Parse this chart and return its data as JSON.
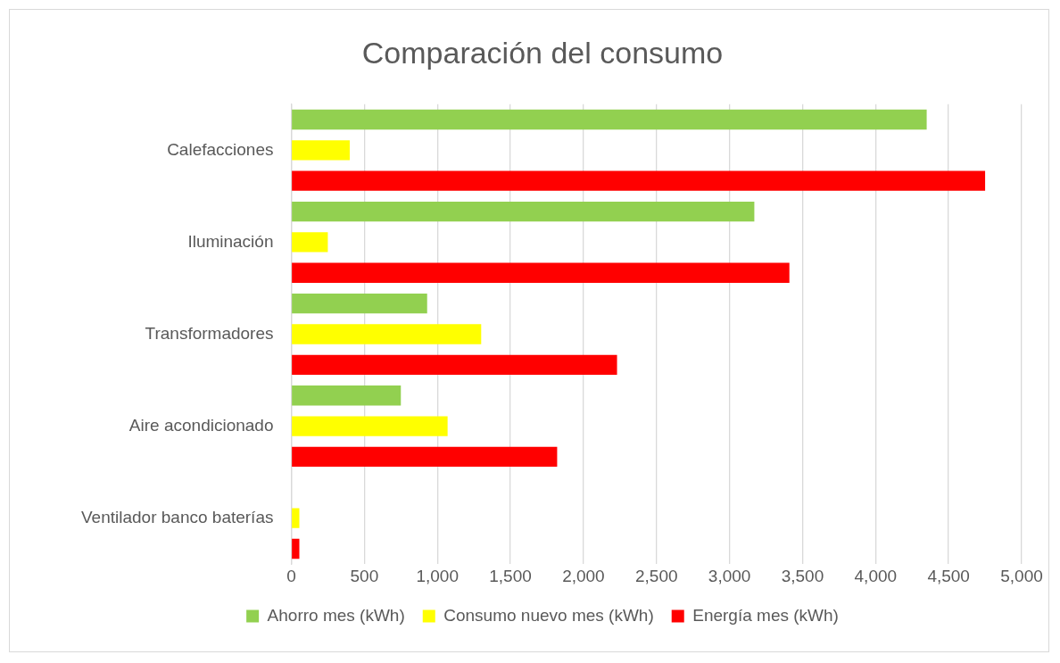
{
  "chart_data": {
    "type": "bar",
    "orientation": "horizontal",
    "title": "Comparación del consumo",
    "categories": [
      "Calefacciones",
      "Iluminación",
      "Transformadores",
      "Aire acondicionado",
      "Ventilador banco baterías"
    ],
    "series": [
      {
        "name": "Ahorro mes (kWh)",
        "color": "#92d050",
        "values": [
          4350,
          3170,
          930,
          750,
          0
        ]
      },
      {
        "name": "Consumo nuevo mes (kWh)",
        "color": "#ffff00",
        "values": [
          400,
          250,
          1300,
          1070,
          55
        ]
      },
      {
        "name": "Energía mes (kWh)",
        "color": "#ff0000",
        "values": [
          4750,
          3410,
          2230,
          1820,
          55
        ]
      }
    ],
    "xlim": [
      0,
      5000
    ],
    "xticks": [
      {
        "value": 0,
        "label": "0"
      },
      {
        "value": 500,
        "label": "500"
      },
      {
        "value": 1000,
        "label": "1,000"
      },
      {
        "value": 1500,
        "label": "1,500"
      },
      {
        "value": 2000,
        "label": "2,000"
      },
      {
        "value": 2500,
        "label": "2,500"
      },
      {
        "value": 3000,
        "label": "3,000"
      },
      {
        "value": 3500,
        "label": "3,500"
      },
      {
        "value": 4000,
        "label": "4,000"
      },
      {
        "value": 4500,
        "label": "4,500"
      },
      {
        "value": 5000,
        "label": "5,000"
      }
    ],
    "grid": "x",
    "legend": "bottom"
  }
}
